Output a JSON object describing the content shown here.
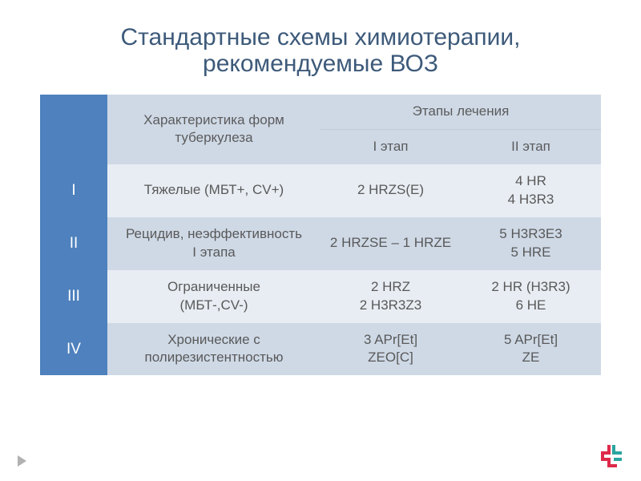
{
  "title": "Стандартные схемы химиотерапии, рекомендуемые ВОЗ",
  "headers": {
    "characteristic": "Характеристика форм туберкулеза",
    "stages": "Этапы лечения",
    "stage1": "I этап",
    "stage2": "II этап"
  },
  "rows": [
    {
      "label": "I",
      "characteristic": "Тяжелые (МБТ+, CV+)",
      "stage1": "2 HRZS(E)",
      "stage2": "4 HR\n4 H3R3"
    },
    {
      "label": "II",
      "characteristic": "Рецидив, неэффективность\nI этапа",
      "stage1": "2 HRZSE – 1 HRZE",
      "stage2": "5 H3R3E3\n5 HRE"
    },
    {
      "label": "III",
      "characteristic": "Ограниченные\n(МБТ-,CV-)",
      "stage1": "2 HRZ\n2 H3R3Z3",
      "stage2": "2 HR (H3R3)\n6 HE"
    },
    {
      "label": "IV",
      "characteristic": "Хронические с полирезистентностью",
      "stage1": "3 APr[Et]\nZEO[C]",
      "stage2": "5 APr[Et]\nZE"
    }
  ],
  "style": {
    "accent": "#4e81bd",
    "light_band": "#e8edf3",
    "dark_band": "#cfd9e6",
    "title_color": "#3d5a7a",
    "text_color": "#595959",
    "logo_red": "#de2a4a",
    "logo_teal": "#2aa5a0",
    "arrow_color": "#b1b1b1",
    "title_fontsize": 30,
    "cell_fontsize": 17
  }
}
